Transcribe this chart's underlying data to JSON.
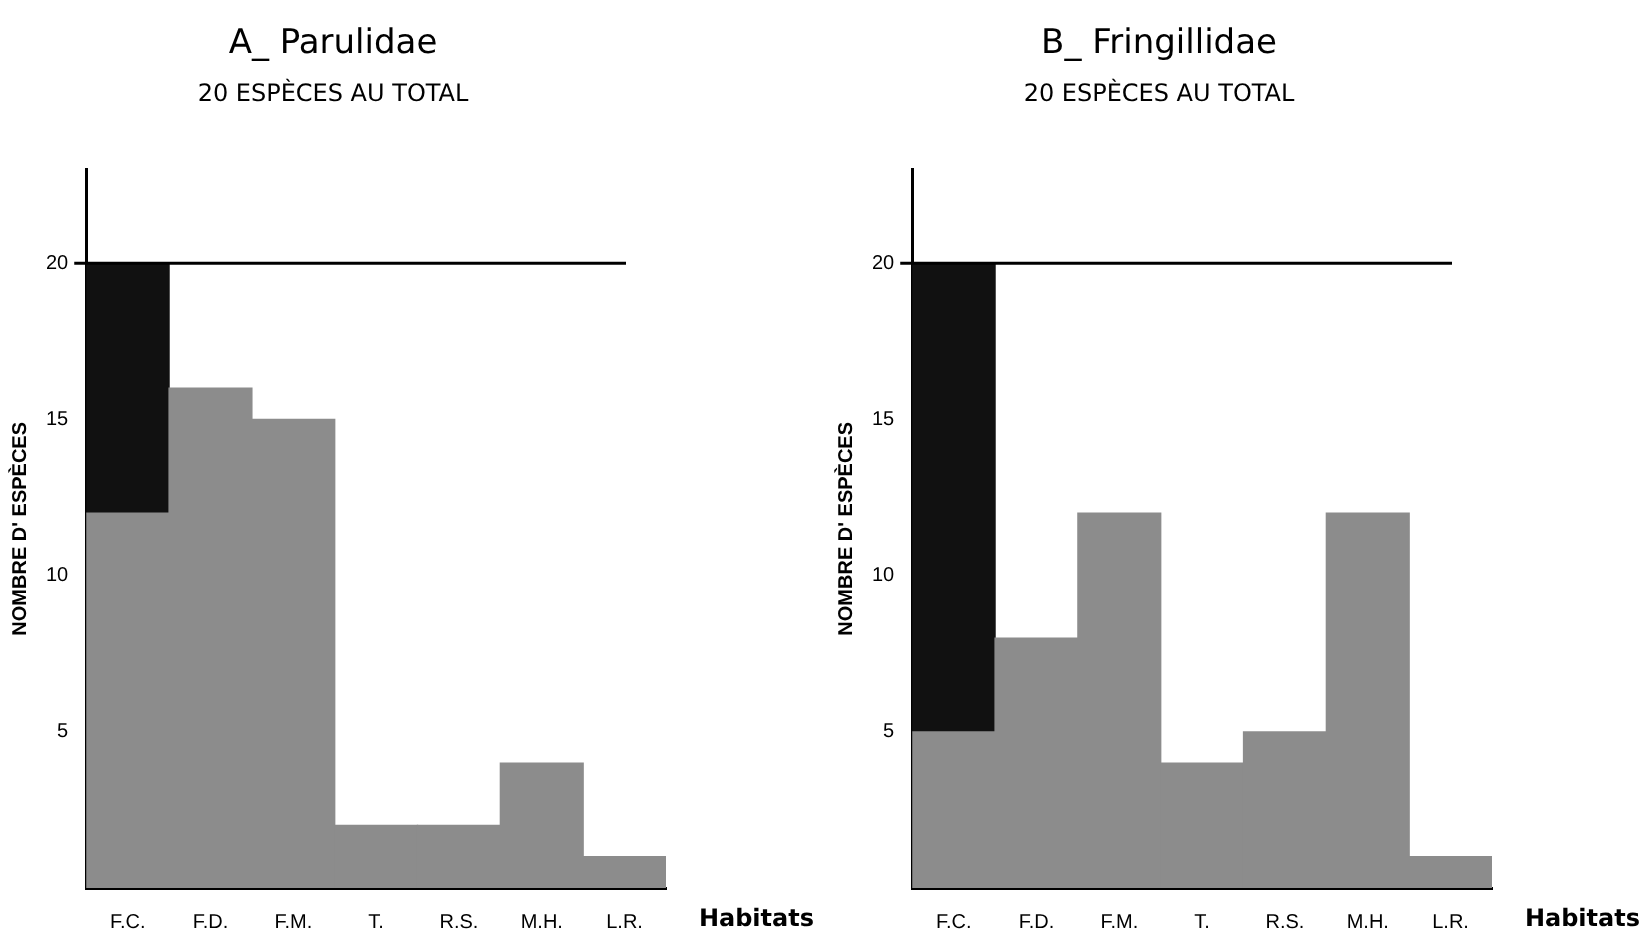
{
  "chart_data": [
    {
      "type": "bar",
      "title": "A_ Parulidae",
      "subtitle": "20 ESPÈCES AU TOTAL",
      "xlabel": "Habitats",
      "ylabel": "NOMBRE D' ESPÈCES",
      "categories": [
        "F.C.",
        "F.D.",
        "F.M.",
        "T.",
        "R.S.",
        "M.H.",
        "L.R."
      ],
      "stacked": true,
      "series": [
        {
          "color": "#8c8c8c",
          "values": [
            12,
            16,
            15,
            2,
            2,
            4,
            1
          ]
        },
        {
          "color": "#111111",
          "values": [
            8,
            null,
            null,
            null,
            null,
            null,
            null
          ]
        }
      ],
      "ylim": [
        0,
        23
      ],
      "yticks": [
        5,
        10,
        15,
        20
      ],
      "grid": false,
      "legend": false,
      "ref_lines": [
        {
          "axis": "y",
          "value": 20,
          "color": "#000000"
        }
      ]
    },
    {
      "type": "bar",
      "title": "B_ Fringillidae",
      "subtitle": "20 ESPÈCES AU TOTAL",
      "xlabel": "Habitats",
      "ylabel": "NOMBRE D' ESPÈCES",
      "categories": [
        "F.C.",
        "F.D.",
        "F.M.",
        "T.",
        "R.S.",
        "M.H.",
        "L.R."
      ],
      "stacked": true,
      "series": [
        {
          "color": "#8c8c8c",
          "values": [
            5,
            8,
            12,
            4,
            5,
            12,
            1
          ]
        },
        {
          "color": "#111111",
          "values": [
            15,
            null,
            null,
            null,
            null,
            null,
            null
          ]
        }
      ],
      "ylim": [
        0,
        23
      ],
      "yticks": [
        5,
        10,
        15,
        20
      ],
      "grid": false,
      "legend": false,
      "ref_lines": [
        {
          "axis": "y",
          "value": 20,
          "color": "#000000"
        }
      ]
    }
  ]
}
